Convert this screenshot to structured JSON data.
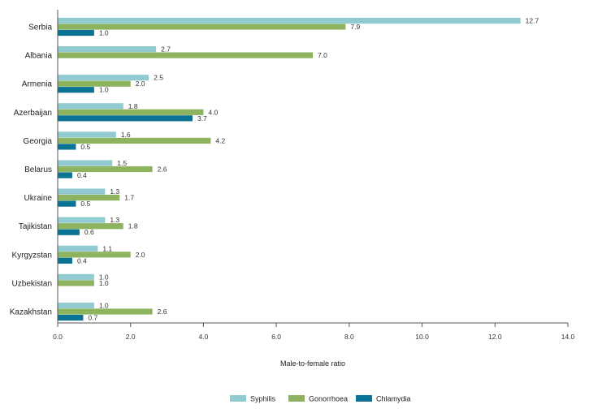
{
  "chart_data": {
    "type": "bar",
    "orientation": "horizontal",
    "categories": [
      "Serbia",
      "Albania",
      "Armenia",
      "Azerbaijan",
      "Georgia",
      "Belarus",
      "Ukraine",
      "Tajikistan",
      "Kyrgyzstan",
      "Uzbekistan",
      "Kazakhstan"
    ],
    "series": [
      {
        "name": "Syphilis",
        "color": "#92cad1",
        "values": [
          12.7,
          2.7,
          2.5,
          1.8,
          1.6,
          1.5,
          1.3,
          1.3,
          1.1,
          1.0,
          1.0
        ],
        "labels": [
          "12.7",
          "2.7",
          "2.5",
          "1.8",
          "1.6",
          "1.5",
          "1.3",
          "1.3",
          "1.1",
          "1.0",
          "1.0"
        ]
      },
      {
        "name": "Gonorrhoea",
        "color": "#8db35e",
        "values": [
          7.9,
          7.0,
          2.0,
          4.0,
          4.2,
          2.6,
          1.7,
          1.8,
          2.0,
          1.0,
          2.6
        ],
        "labels": [
          "7.9",
          "7.0",
          "2.0",
          "4.0",
          "4.2",
          "2.6",
          "1.7",
          "1.8",
          "2.0",
          "1.0",
          "2.6"
        ]
      },
      {
        "name": "Chlamydia",
        "color": "#0a7394",
        "values": [
          1.0,
          null,
          1.0,
          3.7,
          0.5,
          0.4,
          0.5,
          0.6,
          0.4,
          null,
          0.7
        ],
        "labels": [
          "1.0",
          null,
          "1.0",
          "3.7",
          "0.5",
          "0.4",
          "0.5",
          "0.6",
          "0.4",
          null,
          "0.7"
        ]
      }
    ],
    "xlabel": "Male-to-female ratio",
    "xlim": [
      0,
      14
    ],
    "xticks": [
      0,
      2,
      4,
      6,
      8,
      10,
      12,
      14
    ],
    "xtick_labels": [
      "0.0",
      "2.0",
      "4.0",
      "6.0",
      "8.0",
      "10.0",
      "12.0",
      "14.0"
    ],
    "grid": false,
    "legend_position": "bottom-center"
  }
}
